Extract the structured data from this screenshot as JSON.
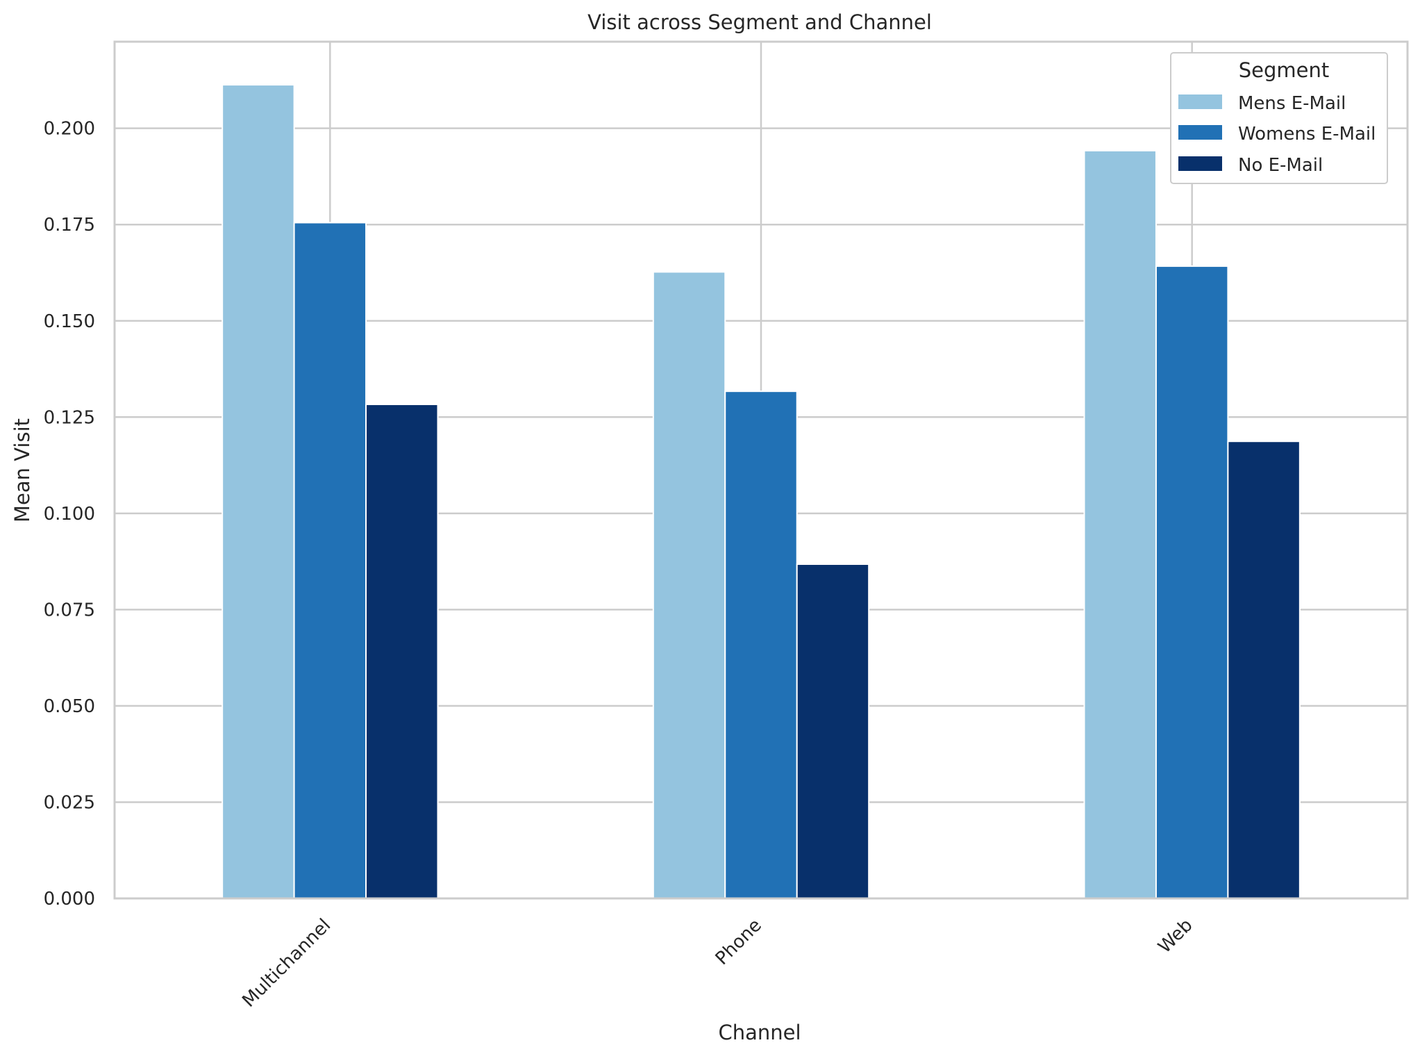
{
  "chart_data": {
    "type": "bar",
    "title": "Visit across Segment and Channel",
    "xlabel": "Channel",
    "ylabel": "Mean Visit",
    "categories": [
      "Multichannel",
      "Phone",
      "Web"
    ],
    "series": [
      {
        "name": "Mens E-Mail",
        "color": "#94c4df",
        "values": [
          0.2113,
          0.1627,
          0.1942
        ]
      },
      {
        "name": "Womens E-Mail",
        "color": "#2171b5",
        "values": [
          0.1755,
          0.1317,
          0.1642
        ]
      },
      {
        "name": "No E-Mail",
        "color": "#08306b",
        "values": [
          0.1283,
          0.0868,
          0.1187
        ]
      }
    ],
    "ylim": [
      0,
      0.2225
    ],
    "yticks": [
      0.0,
      0.025,
      0.05,
      0.075,
      0.1,
      0.125,
      0.15,
      0.175,
      0.2
    ],
    "ytick_labels": [
      "0.000",
      "0.025",
      "0.050",
      "0.075",
      "0.100",
      "0.125",
      "0.150",
      "0.175",
      "0.200"
    ],
    "grid": true,
    "legend": {
      "title": "Segment",
      "placement": "top-right"
    },
    "xtick_rotation": 45
  }
}
